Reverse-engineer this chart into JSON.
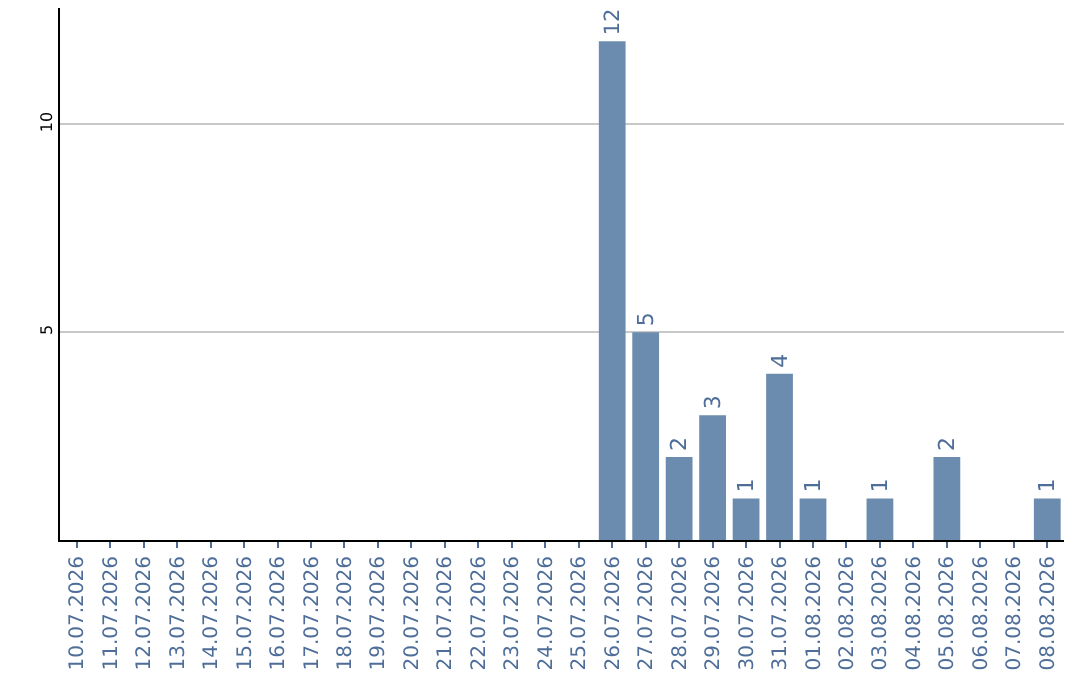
{
  "chart_data": {
    "type": "bar",
    "categories": [
      "10.07.2026",
      "11.07.2026",
      "12.07.2026",
      "13.07.2026",
      "14.07.2026",
      "15.07.2026",
      "16.07.2026",
      "17.07.2026",
      "18.07.2026",
      "19.07.2026",
      "20.07.2026",
      "21.07.2026",
      "22.07.2026",
      "23.07.2026",
      "24.07.2026",
      "25.07.2026",
      "26.07.2026",
      "27.07.2026",
      "28.07.2026",
      "29.07.2026",
      "30.07.2026",
      "31.07.2026",
      "01.08.2026",
      "02.08.2026",
      "03.08.2026",
      "04.08.2026",
      "05.08.2026",
      "06.08.2026",
      "07.08.2026",
      "08.08.2026"
    ],
    "values": [
      0,
      0,
      0,
      0,
      0,
      0,
      0,
      0,
      0,
      0,
      0,
      0,
      0,
      0,
      0,
      0,
      12,
      5,
      2,
      3,
      1,
      4,
      1,
      0,
      1,
      0,
      2,
      0,
      0,
      1
    ],
    "value_labels": [
      null,
      null,
      null,
      null,
      null,
      null,
      null,
      null,
      null,
      null,
      null,
      null,
      null,
      null,
      null,
      null,
      "12",
      "5",
      "2",
      "3",
      "1",
      "4",
      "1",
      null,
      "1",
      null,
      "2",
      null,
      null,
      "1"
    ],
    "color": "#6b8cae",
    "ylim": [
      0,
      12.8
    ],
    "yticks": [
      5,
      10
    ],
    "grid": "y",
    "legend": false
  }
}
